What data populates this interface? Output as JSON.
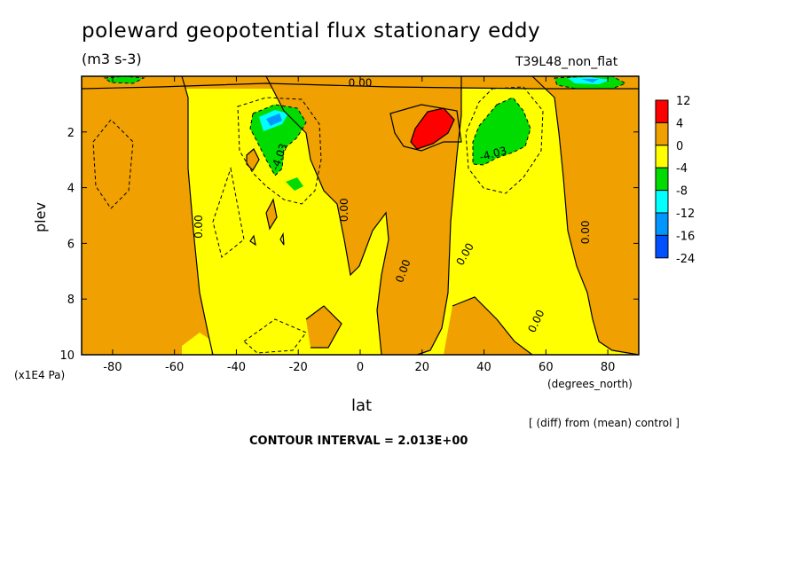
{
  "title": "poleward geopotential flux stationary eddy",
  "units": "(m3 s-3)",
  "run_id": "T39L48_non_flat",
  "footnote": "[ (diff) from (mean) control ]",
  "contour_interval": "CONTOUR INTERVAL = 2.013E+00",
  "chart_data": {
    "type": "heatmap",
    "title": "poleward geopotential flux stationary eddy",
    "xlabel": "lat",
    "xunit": "(degrees_north)",
    "ylabel": "plev",
    "yunit": "(x1E4 Pa)",
    "xlim": [
      -90,
      90
    ],
    "ylim": [
      10,
      0
    ],
    "xticks": [
      "-80",
      "-60",
      "-40",
      "-20",
      "0",
      "20",
      "40",
      "60",
      "80"
    ],
    "xtick_values": [
      -80,
      -60,
      -40,
      -20,
      0,
      20,
      40,
      60,
      80
    ],
    "yticks": [
      "2",
      "4",
      "6",
      "8",
      "10"
    ],
    "ytick_values": [
      2,
      4,
      6,
      8,
      10
    ],
    "colorbar": {
      "labels": [
        "12",
        "4",
        "0",
        "-4",
        "-8",
        "-12",
        "-16",
        "-24"
      ],
      "colors": [
        "#ff0000",
        "#f0a000",
        "#ffff00",
        "#00dc00",
        "#00ffff",
        "#0096ff",
        "#0050ff"
      ]
    },
    "contour_labels": [
      {
        "text": "0.00",
        "lat": 0,
        "plev": 0.25
      },
      {
        "text": "0.00",
        "lat": -52,
        "plev": 5.4
      },
      {
        "text": "0.00",
        "lat": -5,
        "plev": 4.8
      },
      {
        "text": "0.00",
        "lat": 14,
        "plev": 7.0
      },
      {
        "text": "0.00",
        "lat": 34,
        "plev": 6.4
      },
      {
        "text": "0.00",
        "lat": 57,
        "plev": 8.8
      },
      {
        "text": "0.00",
        "lat": 73,
        "plev": 5.6
      },
      {
        "text": "-4.03",
        "lat": -26,
        "plev": 2.9
      },
      {
        "text": "-4.03",
        "lat": 43,
        "plev": 2.8
      }
    ],
    "grid": false
  }
}
